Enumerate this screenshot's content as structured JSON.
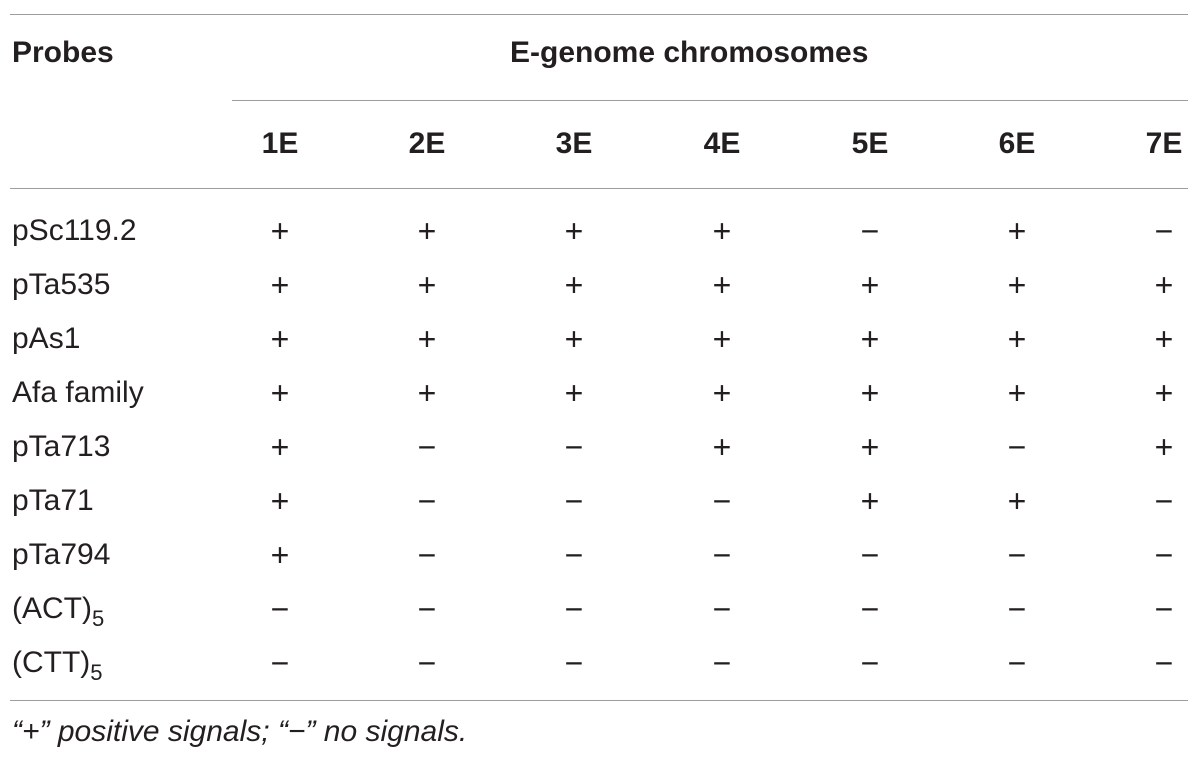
{
  "table": {
    "header_probes": "Probes",
    "header_group": "E-genome chromosomes",
    "columns": [
      "1E",
      "2E",
      "3E",
      "4E",
      "5E",
      "6E",
      "7E"
    ],
    "rows": [
      {
        "probe": "pSc119.2",
        "probe_sub": "",
        "cells": [
          "+",
          "+",
          "+",
          "+",
          "−",
          "+",
          "−"
        ]
      },
      {
        "probe": "pTa535",
        "probe_sub": "",
        "cells": [
          "+",
          "+",
          "+",
          "+",
          "+",
          "+",
          "+"
        ]
      },
      {
        "probe": "pAs1",
        "probe_sub": "",
        "cells": [
          "+",
          "+",
          "+",
          "+",
          "+",
          "+",
          "+"
        ]
      },
      {
        "probe": "Afa family",
        "probe_sub": "",
        "cells": [
          "+",
          "+",
          "+",
          "+",
          "+",
          "+",
          "+"
        ]
      },
      {
        "probe": "pTa713",
        "probe_sub": "",
        "cells": [
          "+",
          "−",
          "−",
          "+",
          "+",
          "−",
          "+"
        ]
      },
      {
        "probe": "pTa71",
        "probe_sub": "",
        "cells": [
          "+",
          "−",
          "−",
          "−",
          "+",
          "+",
          "−"
        ]
      },
      {
        "probe": "pTa794",
        "probe_sub": "",
        "cells": [
          "+",
          "−",
          "−",
          "−",
          "−",
          "−",
          "−"
        ]
      },
      {
        "probe": "(ACT)",
        "probe_sub": "5",
        "cells": [
          "−",
          "−",
          "−",
          "−",
          "−",
          "−",
          "−"
        ]
      },
      {
        "probe": "(CTT)",
        "probe_sub": "5",
        "cells": [
          "−",
          "−",
          "−",
          "−",
          "−",
          "−",
          "−"
        ]
      }
    ],
    "footnote": "“+” positive signals; “−” no signals."
  }
}
